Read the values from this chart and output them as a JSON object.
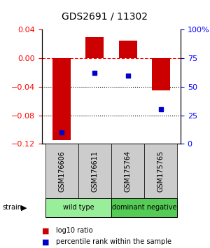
{
  "title": "GDS2691 / 11302",
  "samples": [
    "GSM176606",
    "GSM176611",
    "GSM175764",
    "GSM175765"
  ],
  "log10_ratios": [
    -0.115,
    0.03,
    0.025,
    -0.045
  ],
  "percentile_ranks": [
    10,
    62,
    60,
    30
  ],
  "ylim_left": [
    -0.12,
    0.04
  ],
  "ylim_right": [
    0,
    100
  ],
  "yticks_left": [
    0.04,
    0,
    -0.04,
    -0.08,
    -0.12
  ],
  "yticks_right": [
    100,
    75,
    50,
    25,
    0
  ],
  "bar_color": "#cc0000",
  "dot_color": "#0000cc",
  "dotted_lines": [
    -0.04,
    -0.08
  ],
  "group_info": [
    {
      "label": "wild type",
      "start": 0,
      "end": 2,
      "color": "#99ee99"
    },
    {
      "label": "dominant negative",
      "start": 2,
      "end": 4,
      "color": "#55cc55"
    }
  ],
  "sample_box_color": "#cccccc",
  "legend_items": [
    {
      "color": "#cc0000",
      "label": "log10 ratio"
    },
    {
      "color": "#0000cc",
      "label": "percentile rank within the sample"
    }
  ],
  "title_fontsize": 10,
  "tick_fontsize": 8,
  "label_fontsize": 7,
  "legend_fontsize": 7
}
